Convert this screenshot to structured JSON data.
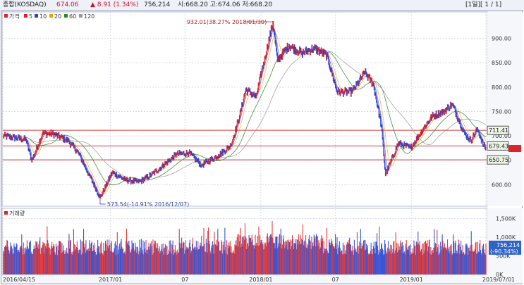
{
  "header": {
    "index_name": "종합(KOSDAQ)",
    "price": "674.06",
    "change": "▲ 8.91 (1.34%)",
    "volume": "756,214",
    "ohlc": "시:668.20  고:674.06  저:668.20",
    "period": "[1일][ 1 / 1]"
  },
  "legend": {
    "price_label": "가격",
    "ma": [
      {
        "label": "5",
        "color": "#e0202a"
      },
      {
        "label": "10",
        "color": "#2244dd"
      },
      {
        "label": "20",
        "color": "#e6a400"
      },
      {
        "label": "60",
        "color": "#2a8a2a"
      },
      {
        "label": "120",
        "color": "#9a9a9a"
      }
    ]
  },
  "volume_panel": {
    "label": "거래량"
  },
  "chart_data": [
    {
      "type": "line",
      "title": "",
      "series": [
        {
          "name": "가격",
          "points": [
            [
              "2016-04-15",
              700
            ],
            [
              "2016-05-15",
              696
            ],
            [
              "2016-06-10",
              692
            ],
            [
              "2016-06-24",
              648
            ],
            [
              "2016-07-20",
              705
            ],
            [
              "2016-08-15",
              704
            ],
            [
              "2016-09-20",
              690
            ],
            [
              "2016-10-15",
              665
            ],
            [
              "2016-11-10",
              620
            ],
            [
              "2016-12-07",
              573.54
            ],
            [
              "2017-01-05",
              625
            ],
            [
              "2017-02-05",
              610
            ],
            [
              "2017-03-10",
              605
            ],
            [
              "2017-04-10",
              620
            ],
            [
              "2017-05-10",
              640
            ],
            [
              "2017-06-10",
              662
            ],
            [
              "2017-07-10",
              665
            ],
            [
              "2017-08-10",
              640
            ],
            [
              "2017-09-20",
              660
            ],
            [
              "2017-10-20",
              680
            ],
            [
              "2017-11-10",
              740
            ],
            [
              "2017-11-25",
              795
            ],
            [
              "2017-12-20",
              780
            ],
            [
              "2018-01-10",
              860
            ],
            [
              "2018-01-30",
              932.01
            ],
            [
              "2018-02-10",
              855
            ],
            [
              "2018-03-10",
              885
            ],
            [
              "2018-04-10",
              870
            ],
            [
              "2018-05-10",
              880
            ],
            [
              "2018-06-10",
              865
            ],
            [
              "2018-07-05",
              790
            ],
            [
              "2018-08-10",
              790
            ],
            [
              "2018-09-10",
              830
            ],
            [
              "2018-10-01",
              805
            ],
            [
              "2018-10-20",
              720
            ],
            [
              "2018-10-30",
              620
            ],
            [
              "2018-11-30",
              685
            ],
            [
              "2018-12-30",
              675
            ],
            [
              "2019-01-30",
              715
            ],
            [
              "2019-02-20",
              740
            ],
            [
              "2019-03-20",
              750
            ],
            [
              "2019-04-10",
              765
            ],
            [
              "2019-05-10",
              705
            ],
            [
              "2019-05-25",
              690
            ],
            [
              "2019-06-10",
              715
            ],
            [
              "2019-06-25",
              680
            ],
            [
              "2019-07-01",
              674.06
            ]
          ]
        }
      ],
      "horizontal_lines": [
        711.41,
        679.43,
        650.75
      ],
      "price_tags": [
        "711.41",
        "679.43",
        "650.75"
      ],
      "annotations": [
        {
          "x": "2018-01-30",
          "y": 932.01,
          "text": "932.01(38.27% 2018/01/30)"
        },
        {
          "x": "2016-12-07",
          "y": 573.54,
          "text": "573.54(-14.91% 2016/12/07)"
        }
      ],
      "y_ticks": [
        "900.00",
        "850.00",
        "800.00",
        "750.00",
        "700.00",
        "650.00",
        "600.00"
      ],
      "y_tick_values": [
        900,
        850,
        800,
        750,
        700,
        650,
        600
      ],
      "ylim": [
        560,
        950
      ]
    },
    {
      "type": "bar",
      "title": "",
      "y_ticks": [
        "1,500K",
        "1,000K",
        "500K",
        "0K"
      ],
      "y_tick_values": [
        1500,
        1000,
        500,
        0
      ],
      "last_value": "756,214",
      "last_change": "(-90.34%)",
      "ylim": [
        0,
        1700
      ],
      "x_ticks": [
        "2016/04/15",
        "2017/01",
        "07",
        "2018/01",
        "07",
        "2019/01",
        "2019/07/01"
      ],
      "x_tick_dates": [
        "2016-04-15",
        "2017-01-01",
        "2017-07-01",
        "2018-01-01",
        "2018-07-01",
        "2019-01-01",
        "2019-07-01"
      ],
      "xlim": [
        "2016-04-15",
        "2019-07-01"
      ]
    }
  ]
}
